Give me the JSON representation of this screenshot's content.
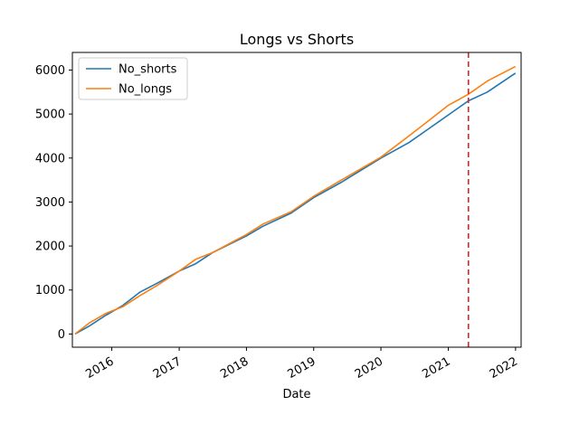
{
  "chart_data": {
    "type": "line",
    "title": "Longs vs Shorts",
    "xlabel": "Date",
    "ylabel": "",
    "xlim": [
      "2015-06-01",
      "2022-01-31"
    ],
    "ylim": [
      -300,
      6400
    ],
    "yticks": [
      0,
      1000,
      2000,
      3000,
      4000,
      5000,
      6000
    ],
    "xticks": [
      {
        "date": "2016-01-01",
        "label": "2016"
      },
      {
        "date": "2017-01-01",
        "label": "2017"
      },
      {
        "date": "2018-01-01",
        "label": "2018"
      },
      {
        "date": "2019-01-01",
        "label": "2019"
      },
      {
        "date": "2020-01-01",
        "label": "2020"
      },
      {
        "date": "2021-01-01",
        "label": "2021"
      },
      {
        "date": "2022-01-01",
        "label": "2022"
      }
    ],
    "grid": false,
    "legend_position": "upper-left",
    "vline": {
      "date": "2021-04-20",
      "color": "#d62728",
      "style": "dashed"
    },
    "series": [
      {
        "name": "No_shorts",
        "color": "#1f77b4",
        "points": [
          [
            "2015-06-15",
            0
          ],
          [
            "2015-09-01",
            180
          ],
          [
            "2015-12-01",
            430
          ],
          [
            "2016-03-01",
            650
          ],
          [
            "2016-06-01",
            950
          ],
          [
            "2016-09-01",
            1150
          ],
          [
            "2017-01-01",
            1430
          ],
          [
            "2017-04-01",
            1600
          ],
          [
            "2017-07-01",
            1850
          ],
          [
            "2018-01-01",
            2230
          ],
          [
            "2018-04-01",
            2450
          ],
          [
            "2018-09-01",
            2750
          ],
          [
            "2019-01-01",
            3100
          ],
          [
            "2019-06-01",
            3450
          ],
          [
            "2020-01-01",
            4000
          ],
          [
            "2020-06-01",
            4350
          ],
          [
            "2020-09-01",
            4620
          ],
          [
            "2021-01-01",
            4980
          ],
          [
            "2021-04-20",
            5300
          ],
          [
            "2021-08-01",
            5500
          ],
          [
            "2021-12-31",
            5930
          ]
        ]
      },
      {
        "name": "No_longs",
        "color": "#ff7f0e",
        "points": [
          [
            "2015-06-15",
            0
          ],
          [
            "2015-09-01",
            250
          ],
          [
            "2015-12-01",
            470
          ],
          [
            "2016-03-01",
            620
          ],
          [
            "2016-06-01",
            870
          ],
          [
            "2016-09-01",
            1100
          ],
          [
            "2017-01-01",
            1430
          ],
          [
            "2017-04-01",
            1700
          ],
          [
            "2017-07-01",
            1850
          ],
          [
            "2018-01-01",
            2260
          ],
          [
            "2018-04-01",
            2500
          ],
          [
            "2018-09-01",
            2780
          ],
          [
            "2019-01-01",
            3130
          ],
          [
            "2019-06-01",
            3500
          ],
          [
            "2020-01-01",
            4020
          ],
          [
            "2020-06-01",
            4500
          ],
          [
            "2020-09-01",
            4800
          ],
          [
            "2021-01-01",
            5200
          ],
          [
            "2021-04-20",
            5450
          ],
          [
            "2021-08-01",
            5750
          ],
          [
            "2021-12-31",
            6080
          ]
        ]
      }
    ]
  }
}
